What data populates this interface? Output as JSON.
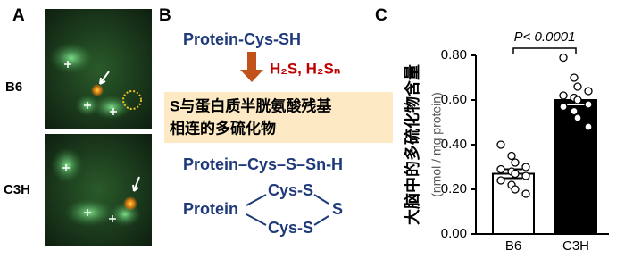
{
  "panel_labels": [
    "A",
    "B",
    "C"
  ],
  "panel_a": {
    "rows": [
      "B6",
      "C3H"
    ]
  },
  "panel_b": {
    "reactant": "Protein-Cys-SH",
    "reagent": "H₂S, H₂Sₙ",
    "box_lines": [
      "S与蛋白质半胱氨酸残基",
      "相连的多硫化物"
    ],
    "linear_product": "Protein–Cys–S–Sn-H",
    "ring": {
      "protein": "Protein",
      "top": "Cys-S",
      "bottom": "Cys-S",
      "bridge": "S"
    }
  },
  "chart_data": {
    "type": "bar",
    "ylabel": "大脑中的多硫化物含量",
    "ylabel_unit": "(nmol / mg protein)",
    "annotation": "P< 0.0001",
    "categories": [
      "B6",
      "C3H"
    ],
    "values": [
      0.27,
      0.6
    ],
    "errors": [
      0.02,
      0.02
    ],
    "colors": [
      "#ffffff",
      "#000000"
    ],
    "points": [
      [
        0.4,
        0.35,
        0.32,
        0.3,
        0.29,
        0.28,
        0.27,
        0.26,
        0.24,
        0.22,
        0.2,
        0.18
      ],
      [
        0.79,
        0.7,
        0.66,
        0.64,
        0.62,
        0.61,
        0.6,
        0.58,
        0.57,
        0.55,
        0.52,
        0.48
      ]
    ],
    "ylim": [
      0,
      0.8
    ],
    "yticks": [
      {
        "value": 0,
        "label": "0.00"
      },
      {
        "value": 0.2,
        "label": "0.20"
      },
      {
        "value": 0.4,
        "label": "0.40"
      },
      {
        "value": 0.6,
        "label": "0.60"
      },
      {
        "value": 0.8,
        "label": "0.80"
      }
    ]
  }
}
